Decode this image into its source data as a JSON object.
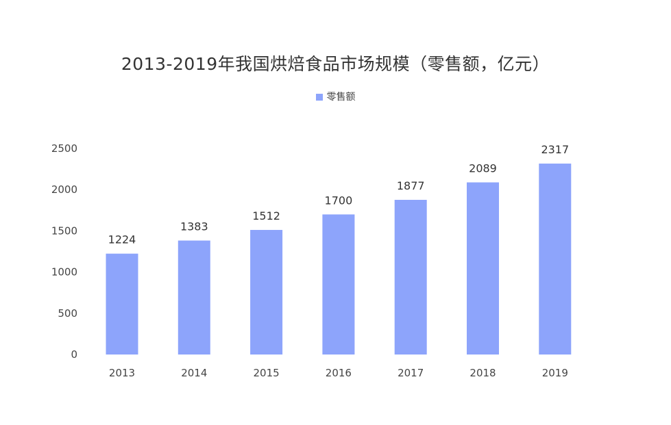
{
  "chart_data": {
    "type": "bar",
    "title": "2013-2019年我国烘焙食品市场规模（零售额，亿元）",
    "categories": [
      "2013",
      "2014",
      "2015",
      "2016",
      "2017",
      "2018",
      "2019"
    ],
    "series": [
      {
        "name": "零售额",
        "values": [
          1224,
          1383,
          1512,
          1700,
          1877,
          2089,
          2317
        ]
      }
    ],
    "yticks": [
      "0",
      "500",
      "1000",
      "1500",
      "2000",
      "2500"
    ],
    "ylim": [
      0,
      2500
    ],
    "grid": false,
    "legend_position": "top-center",
    "bar_color": "#8DA4FB"
  }
}
